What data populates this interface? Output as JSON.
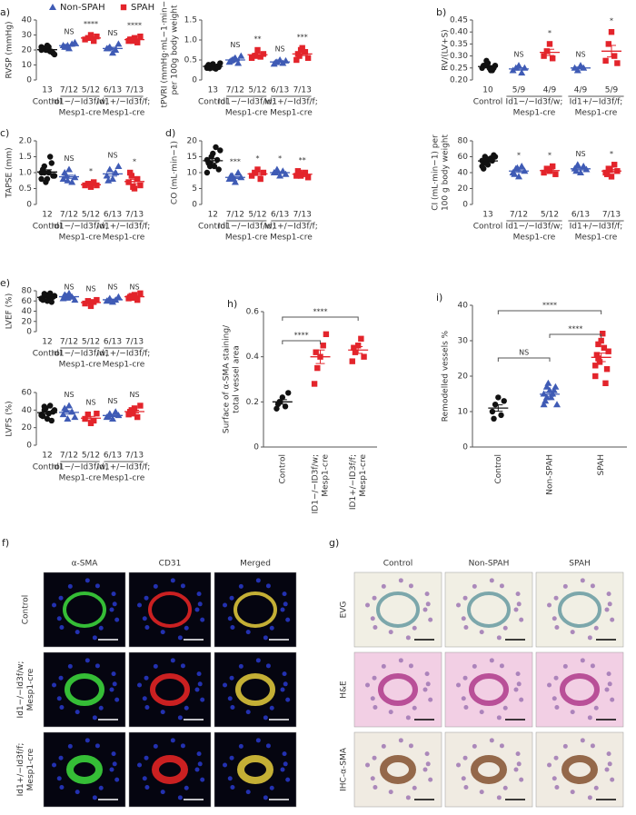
{
  "chart_data": [
    {
      "type": "dot",
      "panel": "a)",
      "ylabel": [
        "RVSP (mmHg)"
      ],
      "ylim": [
        0,
        40
      ],
      "yticks": [
        0,
        10,
        20,
        30,
        40
      ],
      "legend": [
        {
          "name": "Non-SPAH",
          "color": "#3f5bb5",
          "marker": "triangle"
        },
        {
          "name": "SPAH",
          "color": "#e3242b",
          "marker": "square"
        }
      ],
      "categories": [
        "13",
        "7/12",
        "5/12",
        "6/13",
        "7/13"
      ],
      "groups": [
        {
          "lines": [
            "Control"
          ],
          "size": 1
        },
        {
          "lines": [
            "Id1−/−Id3f/w;",
            "Mesp1-cre"
          ],
          "size": 2
        },
        {
          "lines": [
            "Id1+/−Id3f/f;",
            "Mesp1-cre"
          ],
          "size": 2
        }
      ],
      "colors": [
        "#111111",
        "#3f5bb5",
        "#e3242b",
        "#3f5bb5",
        "#e3242b"
      ],
      "markers": [
        "circle",
        "triangle",
        "square",
        "triangle",
        "square"
      ],
      "points": [
        [
          22,
          21,
          20,
          19,
          18,
          21,
          20,
          22,
          19,
          17,
          20,
          21,
          23
        ],
        [
          23,
          22,
          21,
          24,
          25,
          22,
          23
        ],
        [
          27,
          28,
          30,
          26,
          29
        ],
        [
          21,
          22,
          18,
          20,
          24,
          21
        ],
        [
          26,
          27,
          28,
          25,
          29,
          27,
          26
        ]
      ],
      "means": [
        20.2,
        22.9,
        28,
        21,
        26.9
      ],
      "sems": [
        0.5,
        0.5,
        0.7,
        0.8,
        0.5
      ],
      "annotations": [
        null,
        "NS",
        "****",
        "NS",
        "****"
      ]
    },
    {
      "type": "dot",
      "ylabel": [
        "tPVRI (mmHg·mL−1·min−1)",
        "per 100g body weight"
      ],
      "ylim": [
        0,
        1.5
      ],
      "yticks": [
        0,
        0.5,
        {
          "value": 1,
          "label": "1.0"
        },
        1.5
      ],
      "categories": [
        "13",
        "7/12",
        "5/12",
        "6/13",
        "7/13"
      ],
      "groups": [
        {
          "lines": [
            "Control"
          ],
          "size": 1
        },
        {
          "lines": [
            "Id1−/−Id3f/w;",
            "Mesp1-cre"
          ],
          "size": 2
        },
        {
          "lines": [
            "Id1+/−Id3f/f;",
            "Mesp1-cre"
          ],
          "size": 2
        }
      ],
      "colors": [
        "#111111",
        "#3f5bb5",
        "#e3242b",
        "#3f5bb5",
        "#e3242b"
      ],
      "markers": [
        "circle",
        "triangle",
        "square",
        "triangle",
        "square"
      ],
      "points": [
        [
          0.3,
          0.35,
          0.4,
          0.28,
          0.32,
          0.38,
          0.36,
          0.3,
          0.34,
          0.42,
          0.33,
          0.29,
          0.31
        ],
        [
          0.45,
          0.5,
          0.55,
          0.42,
          0.6,
          0.48,
          0.52
        ],
        [
          0.55,
          0.6,
          0.75,
          0.58,
          0.65
        ],
        [
          0.4,
          0.45,
          0.5,
          0.42,
          0.48,
          0.44
        ],
        [
          0.5,
          0.6,
          0.8,
          0.7,
          0.55,
          0.65,
          0.75
        ]
      ],
      "means": [
        0.34,
        0.5,
        0.63,
        0.45,
        0.65
      ],
      "sems": [
        0.01,
        0.02,
        0.04,
        0.015,
        0.04
      ],
      "annotations": [
        null,
        "NS",
        "**",
        "NS",
        "***"
      ]
    },
    {
      "type": "dot",
      "panel": "b)",
      "ylabel": [
        "RV/(LV+S)"
      ],
      "ylim": [
        0.2,
        0.45
      ],
      "yticks": [
        {
          "value": 0.2,
          "label": "0.20"
        },
        0.25,
        {
          "value": 0.3,
          "label": "0.30"
        },
        0.35,
        {
          "value": 0.4,
          "label": "0.40"
        },
        0.45
      ],
      "categories": [
        "10",
        "5/9",
        "4/9",
        "4/9",
        "5/9"
      ],
      "groups": [
        {
          "lines": [
            "Control"
          ],
          "size": 1
        },
        {
          "lines": [
            "Id1−/−Id3f/w;",
            "Mesp1-cre"
          ],
          "size": 2
        },
        {
          "lines": [
            "Id1+/−Id3f/f;",
            "Mesp1-cre"
          ],
          "size": 2
        }
      ],
      "colors": [
        "#111111",
        "#3f5bb5",
        "#e3242b",
        "#3f5bb5",
        "#e3242b"
      ],
      "markers": [
        "circle",
        "triangle",
        "square",
        "triangle",
        "square"
      ],
      "points": [
        [
          0.25,
          0.26,
          0.27,
          0.24,
          0.25,
          0.26,
          0.28,
          0.25,
          0.24,
          0.26
        ],
        [
          0.24,
          0.25,
          0.26,
          0.23,
          0.25
        ],
        [
          0.3,
          0.32,
          0.35,
          0.29
        ],
        [
          0.25,
          0.24,
          0.26,
          0.25
        ],
        [
          0.28,
          0.35,
          0.4,
          0.3,
          0.27
        ]
      ],
      "means": [
        0.256,
        0.246,
        0.315,
        0.25,
        0.32
      ],
      "sems": [
        0.004,
        0.005,
        0.013,
        0.004,
        0.024
      ],
      "annotations": [
        null,
        "NS",
        "*",
        "NS",
        "*"
      ]
    },
    {
      "type": "dot",
      "panel": "c)",
      "ylabel": [
        "TAPSE (mm)"
      ],
      "ylim": [
        0,
        2
      ],
      "yticks": [
        0,
        0.5,
        {
          "value": 1,
          "label": "1.0"
        },
        1.5,
        {
          "value": 2,
          "label": "2.0"
        }
      ],
      "categories": [
        "12",
        "7/12",
        "5/12",
        "6/13",
        "7/13"
      ],
      "groups": [
        {
          "lines": [
            "Control"
          ],
          "size": 1
        },
        {
          "lines": [
            "Id1−/−Id3f/w;",
            "Mesp1-cre"
          ],
          "size": 2
        },
        {
          "lines": [
            "Id1+/−Id3f/f;",
            "Mesp1-cre"
          ],
          "size": 2
        }
      ],
      "colors": [
        "#111111",
        "#3f5bb5",
        "#e3242b",
        "#3f5bb5",
        "#e3242b"
      ],
      "markers": [
        "circle",
        "triangle",
        "square",
        "triangle",
        "square"
      ],
      "points": [
        [
          1.0,
          1.2,
          0.8,
          1.5,
          0.9,
          1.1,
          0.7,
          1.0,
          1.3,
          0.9,
          0.8,
          1.0
        ],
        [
          0.8,
          0.9,
          1.1,
          0.7,
          0.85,
          1.0,
          0.75
        ],
        [
          0.6,
          0.65,
          0.55,
          0.7,
          0.6
        ],
        [
          0.9,
          1.1,
          0.8,
          1.0,
          1.2,
          0.75
        ],
        [
          0.7,
          0.9,
          0.5,
          0.8,
          0.6,
          1.0,
          0.55
        ]
      ],
      "means": [
        1.02,
        0.87,
        0.62,
        0.96,
        0.72
      ],
      "sems": [
        0.07,
        0.05,
        0.03,
        0.07,
        0.07
      ],
      "annotations": [
        null,
        "NS",
        "*",
        "NS",
        "*"
      ]
    },
    {
      "type": "dot",
      "panel": "d)",
      "ylabel": [
        "CO (mL·min−1)"
      ],
      "ylim": [
        0,
        20
      ],
      "yticks": [
        0,
        5,
        10,
        15,
        20
      ],
      "categories": [
        "12",
        "7/12",
        "5/12",
        "6/13",
        "7/13"
      ],
      "groups": [
        {
          "lines": [
            "Control"
          ],
          "size": 1
        },
        {
          "lines": [
            "Id1−/−Id3f/w;",
            "Mesp1-cre"
          ],
          "size": 2
        },
        {
          "lines": [
            "Id1+/−Id3f/f;",
            "Mesp1-cre"
          ],
          "size": 2
        }
      ],
      "colors": [
        "#111111",
        "#3f5bb5",
        "#e3242b",
        "#3f5bb5",
        "#e3242b"
      ],
      "markers": [
        "circle",
        "triangle",
        "square",
        "triangle",
        "square"
      ],
      "points": [
        [
          14,
          12,
          16,
          18,
          11,
          13,
          15,
          12,
          14,
          17,
          10,
          13
        ],
        [
          8,
          9,
          7,
          10,
          8.5,
          9,
          8
        ],
        [
          9,
          10,
          11,
          8,
          10
        ],
        [
          10,
          11,
          9,
          10.5,
          9.5,
          10
        ],
        [
          9,
          10,
          9.5,
          10,
          8.5,
          10.5,
          9
        ]
      ],
      "means": [
        13.75,
        8.5,
        9.6,
        10,
        9.5
      ],
      "sems": [
        0.7,
        0.35,
        0.5,
        0.3,
        0.27
      ],
      "annotations": [
        null,
        "***",
        "*",
        "*",
        "**"
      ]
    },
    {
      "type": "dot",
      "ylabel": [
        "CI (mL·min−1) per",
        "100 g body weight"
      ],
      "ylim": [
        0,
        80
      ],
      "yticks": [
        0,
        20,
        40,
        60,
        80
      ],
      "categories": [
        "13",
        "7/12",
        "5/12",
        "6/13",
        "7/13"
      ],
      "groups": [
        {
          "lines": [
            "Control"
          ],
          "size": 1
        },
        {
          "lines": [
            "Id1−/−Id3f/w;",
            "Mesp1-cre"
          ],
          "size": 2
        },
        {
          "lines": [
            "Id1+/−Id3f/f;",
            "Mesp1-cre"
          ],
          "size": 2
        }
      ],
      "colors": [
        "#111111",
        "#3f5bb5",
        "#e3242b",
        "#3f5bb5",
        "#e3242b"
      ],
      "markers": [
        "circle",
        "triangle",
        "square",
        "triangle",
        "square"
      ],
      "points": [
        [
          55,
          60,
          50,
          58,
          62,
          45,
          52,
          57,
          55,
          60,
          48,
          53,
          56
        ],
        [
          40,
          45,
          35,
          48,
          42,
          38,
          46
        ],
        [
          40,
          45,
          42,
          48,
          38
        ],
        [
          45,
          50,
          40,
          48,
          44,
          42
        ],
        [
          40,
          45,
          35,
          50,
          42,
          38,
          44
        ]
      ],
      "means": [
        54.7,
        42,
        42.6,
        44.8,
        42
      ],
      "sems": [
        1.4,
        1.7,
        1.7,
        1.5,
        1.8
      ],
      "annotations": [
        null,
        "*",
        "*",
        "NS",
        "*"
      ]
    },
    {
      "type": "dot",
      "panel": "e)",
      "ylabel": [
        "LVEF (%)"
      ],
      "ylim": [
        0,
        80
      ],
      "yticks": [
        0,
        20,
        40,
        60,
        80
      ],
      "categories": [
        "12",
        "7/12",
        "5/12",
        "6/13",
        "7/13"
      ],
      "groups": [
        {
          "lines": [
            "Control"
          ],
          "size": 1
        },
        {
          "lines": [
            "Id1−/−Id3f/w;",
            "Mesp1-cre"
          ],
          "size": 2
        },
        {
          "lines": [
            "Id1+/−Id3f/f;",
            "Mesp1-cre"
          ],
          "size": 2
        }
      ],
      "colors": [
        "#111111",
        "#3f5bb5",
        "#e3242b",
        "#3f5bb5",
        "#e3242b"
      ],
      "markers": [
        "circle",
        "triangle",
        "square",
        "triangle",
        "square"
      ],
      "points": [
        [
          65,
          70,
          60,
          75,
          68,
          62,
          72,
          66,
          58,
          70,
          64,
          74
        ],
        [
          65,
          70,
          75,
          68,
          62,
          72,
          66
        ],
        [
          55,
          60,
          50,
          58,
          62
        ],
        [
          60,
          65,
          58,
          62,
          68,
          61
        ],
        [
          65,
          70,
          72,
          62,
          75,
          68,
          66
        ]
      ],
      "means": [
        67,
        68.3,
        57,
        62.3,
        68.3
      ],
      "sems": [
        1.5,
        1.6,
        2.1,
        1.4,
        1.6
      ],
      "annotations": [
        null,
        "NS",
        "NS",
        "NS",
        "NS"
      ]
    },
    {
      "type": "dot",
      "ylabel": [
        "LVFS (%)"
      ],
      "ylim": [
        0,
        60
      ],
      "yticks": [
        0,
        20,
        40,
        60
      ],
      "categories": [
        "12",
        "7/12",
        "5/12",
        "6/13",
        "7/13"
      ],
      "groups": [
        {
          "lines": [
            "Control"
          ],
          "size": 1
        },
        {
          "lines": [
            "Id1−/−Id3f/w;",
            "Mesp1-cre"
          ],
          "size": 2
        },
        {
          "lines": [
            "Id1+/−Id3f/f;",
            "Mesp1-cre"
          ],
          "size": 2
        }
      ],
      "colors": [
        "#111111",
        "#3f5bb5",
        "#e3242b",
        "#3f5bb5",
        "#e3242b"
      ],
      "markers": [
        "circle",
        "triangle",
        "square",
        "triangle",
        "square"
      ],
      "points": [
        [
          35,
          40,
          30,
          45,
          38,
          33,
          42,
          36,
          28,
          40,
          34,
          44
        ],
        [
          35,
          40,
          45,
          38,
          32,
          42,
          30
        ],
        [
          30,
          35,
          25,
          28,
          36
        ],
        [
          32,
          36,
          30,
          38,
          34,
          33
        ],
        [
          35,
          40,
          42,
          32,
          45,
          38,
          36
        ]
      ],
      "means": [
        37.1,
        37.4,
        30.8,
        33.8,
        38.3
      ],
      "sems": [
        1.5,
        2,
        2,
        1.2,
        1.6
      ],
      "annotations": [
        null,
        "NS",
        "NS",
        "NS",
        "NS"
      ]
    },
    {
      "type": "dot",
      "panel": "h)",
      "ylabel": [
        "Surface of α-SMA staining/",
        "total vessel area"
      ],
      "ylim": [
        0,
        0.6
      ],
      "yticks": [
        0,
        0.2,
        0.4,
        0.6
      ],
      "categories": [
        [
          "Control"
        ],
        [
          "ID1−/−ID3f/w;",
          "Mesp1-cre"
        ],
        [
          "ID1+/−ID3f/f;",
          "Mesp1-cre"
        ]
      ],
      "colors": [
        "#111111",
        "#e3242b",
        "#e3242b"
      ],
      "markers": [
        "circle",
        "square",
        "square"
      ],
      "points": [
        [
          0.17,
          0.2,
          0.22,
          0.18,
          0.24,
          0.19
        ],
        [
          0.28,
          0.35,
          0.4,
          0.45,
          0.5,
          0.42
        ],
        [
          0.38,
          0.42,
          0.45,
          0.48,
          0.4,
          0.44
        ]
      ],
      "means": [
        0.2,
        0.4,
        0.43
      ],
      "sems": [
        0.01,
        0.03,
        0.015
      ],
      "brackets": [
        {
          "from": 0,
          "to": 1,
          "label": "****"
        },
        {
          "from": 0,
          "to": 2,
          "label": "****"
        }
      ]
    },
    {
      "type": "dot",
      "panel": "i)",
      "ylabel": [
        "Remodelled vessels %"
      ],
      "ylim": [
        0,
        40
      ],
      "yticks": [
        0,
        10,
        20,
        30,
        40
      ],
      "categories": [
        [
          "Control"
        ],
        [
          "Non-SPAH"
        ],
        [
          "SPAH"
        ]
      ],
      "colors": [
        "#111111",
        "#3f5bb5",
        "#e3242b"
      ],
      "markers": [
        "circle",
        "triangle",
        "square"
      ],
      "points": [
        [
          10,
          12,
          14,
          9,
          13,
          8
        ],
        [
          12,
          14,
          16,
          15,
          17,
          13,
          18,
          14,
          16,
          12,
          15,
          17
        ],
        [
          20,
          25,
          30,
          28,
          22,
          26,
          24,
          32,
          18,
          27,
          23,
          29
        ]
      ],
      "means": [
        11,
        14.9,
        25.3
      ],
      "sems": [
        0.9,
        0.6,
        1.2
      ],
      "brackets": [
        {
          "from": 0,
          "to": 1,
          "label": "NS"
        },
        {
          "from": 1,
          "to": 2,
          "label": "****"
        },
        {
          "from": 0,
          "to": 2,
          "label": "****"
        }
      ]
    }
  ],
  "image_panels": [
    {
      "panel": "f)",
      "columns": [
        "α-SMA",
        "CD31",
        "Merged"
      ],
      "rows": [
        [
          "Control"
        ],
        [
          "Id1−/−Id3f/w;",
          "Mesp1-cre"
        ],
        [
          "Id1+/−Id3f/f;",
          "Mesp1-cre"
        ]
      ]
    },
    {
      "panel": "g)",
      "columns": [
        "Control",
        "Non-SPAH",
        "SPAH"
      ],
      "rows": [
        [
          "EVG"
        ],
        [
          "H&E"
        ],
        [
          "IHC-α-SMA"
        ]
      ]
    }
  ]
}
